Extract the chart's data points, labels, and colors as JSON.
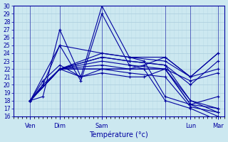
{
  "title": "",
  "xlabel": "Température (°c)",
  "background_color": "#cce8f0",
  "plot_bg_color": "#cce8f0",
  "line_color": "#0000a0",
  "grid_major_color": "#aaccdd",
  "grid_minor_color": "#bbdde8",
  "axis_color": "#0000a0",
  "tick_label_color": "#0000a0",
  "ylim": [
    16,
    30
  ],
  "yticks": [
    16,
    17,
    18,
    19,
    20,
    21,
    22,
    23,
    24,
    25,
    26,
    27,
    28,
    29,
    30
  ],
  "xlim": [
    0,
    100
  ],
  "xtick_positions": [
    8,
    22,
    42,
    72,
    84,
    97
  ],
  "xtick_labels": [
    "Ven",
    "Dim",
    "Sam",
    "",
    "Lun",
    "Mar"
  ],
  "series": [
    {
      "x": [
        8,
        22,
        42,
        55,
        72,
        84,
        97
      ],
      "y": [
        18,
        22,
        24,
        23.5,
        23,
        21,
        24
      ]
    },
    {
      "x": [
        8,
        22,
        42,
        55,
        72,
        84,
        97
      ],
      "y": [
        18,
        22,
        23.5,
        23,
        22.5,
        20,
        23
      ]
    },
    {
      "x": [
        8,
        14,
        22,
        32,
        42,
        55,
        62,
        72,
        84,
        97
      ],
      "y": [
        18,
        18.5,
        27,
        21,
        30,
        23.5,
        23,
        18.5,
        17.5,
        16
      ]
    },
    {
      "x": [
        8,
        14,
        22,
        32,
        42,
        55,
        62,
        72,
        84,
        97
      ],
      "y": [
        18,
        20,
        25,
        20.5,
        29,
        22.5,
        22,
        18,
        17,
        15.5
      ]
    },
    {
      "x": [
        8,
        22,
        42,
        55,
        72,
        84,
        97
      ],
      "y": [
        18,
        22,
        23,
        22.5,
        22,
        17.5,
        18.5
      ]
    },
    {
      "x": [
        8,
        22,
        42,
        55,
        72,
        84,
        97
      ],
      "y": [
        18,
        22,
        23.5,
        23,
        22.5,
        18,
        17
      ]
    },
    {
      "x": [
        8,
        22,
        42,
        55,
        72,
        84,
        97
      ],
      "y": [
        18,
        22,
        22,
        22,
        22,
        17.5,
        17
      ]
    },
    {
      "x": [
        8,
        22,
        42,
        55,
        72,
        84,
        97
      ],
      "y": [
        18,
        22,
        22.5,
        22,
        22,
        18,
        16.5
      ]
    },
    {
      "x": [
        8,
        22,
        42,
        55,
        72,
        84,
        97
      ],
      "y": [
        18,
        25,
        24,
        23.5,
        23.5,
        21,
        24
      ]
    },
    {
      "x": [
        8,
        14,
        22,
        32,
        42,
        55,
        62,
        72,
        84,
        97
      ],
      "y": [
        18,
        20.5,
        22.5,
        21,
        21.5,
        21,
        21,
        22,
        20.5,
        21.5
      ]
    },
    {
      "x": [
        8,
        14,
        22,
        32,
        42,
        55,
        62,
        72,
        84,
        97
      ],
      "y": [
        18,
        20,
        22,
        21,
        22,
        22,
        22.5,
        23.5,
        21,
        22
      ]
    },
    {
      "x": [
        8,
        22,
        42,
        55,
        72,
        84,
        97
      ],
      "y": [
        18,
        22,
        22,
        21.5,
        21,
        17.2,
        16.5
      ]
    }
  ]
}
